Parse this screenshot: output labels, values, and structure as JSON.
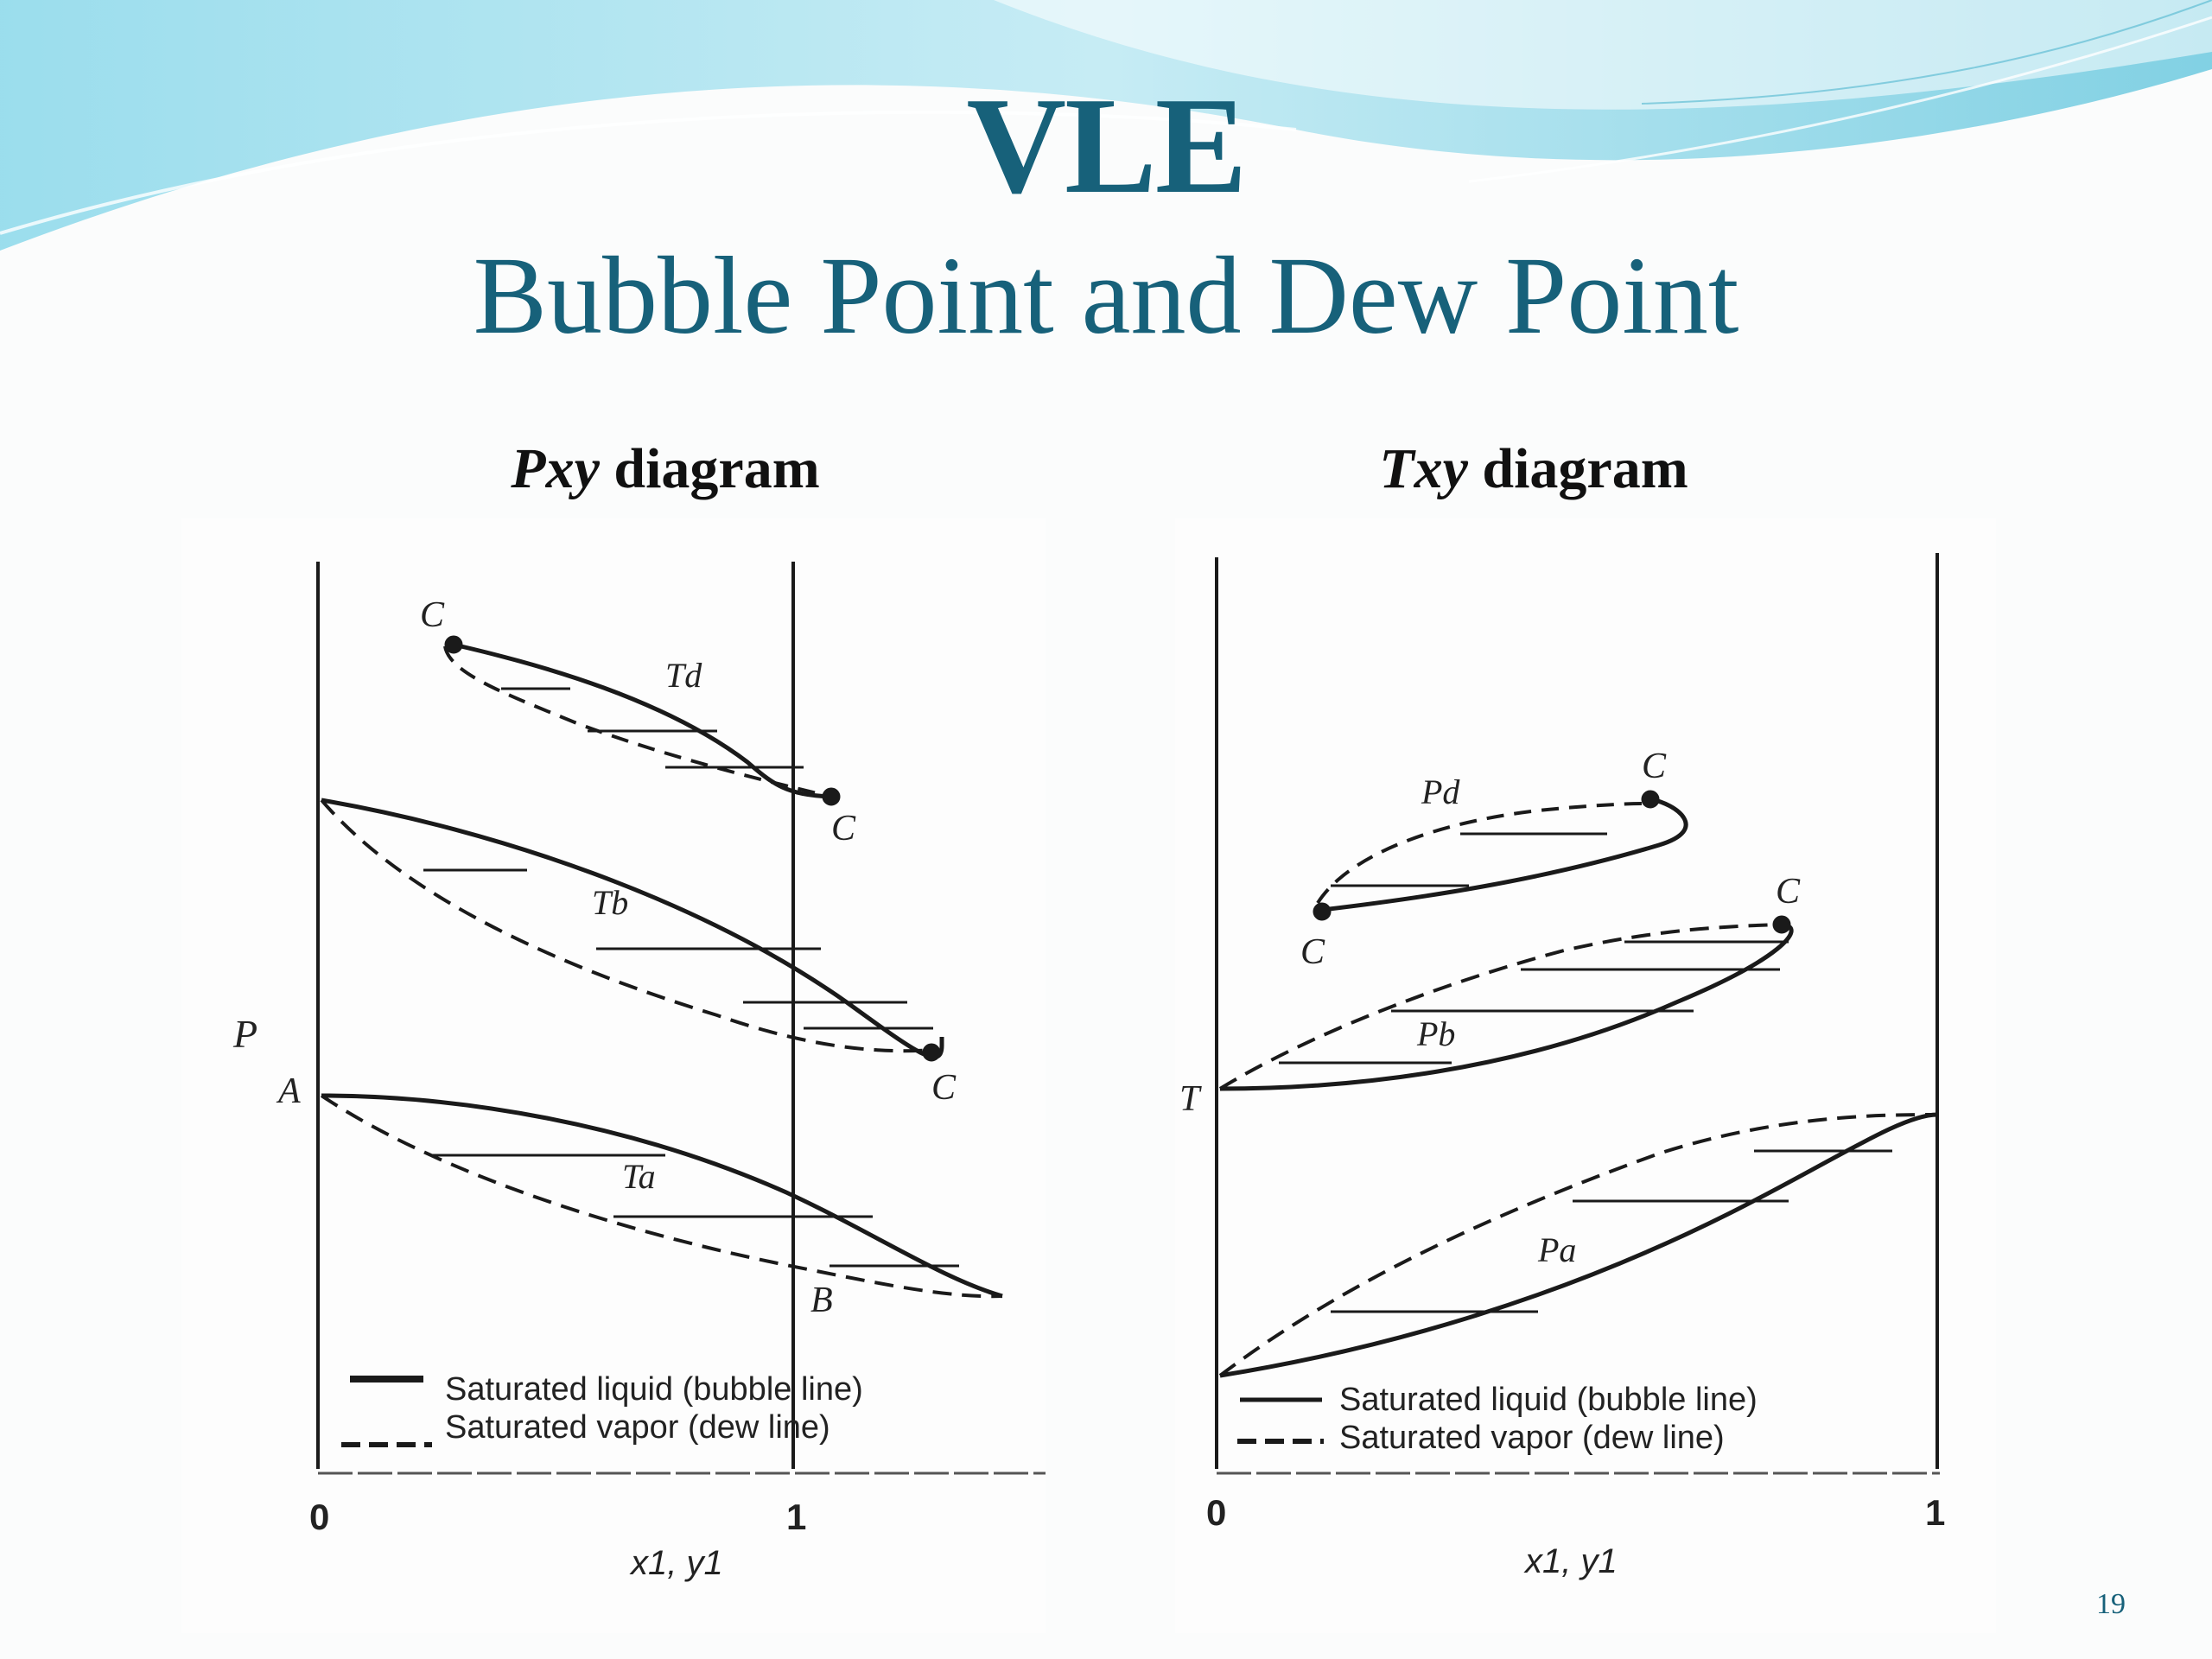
{
  "slide": {
    "title": "VLE",
    "subtitle": "Bubble Point and Dew Point",
    "page_number": "19"
  },
  "pxy": {
    "heading_symbol": "Pxy",
    "heading_text": " diagram",
    "y_axis_label": "P",
    "x_tick_0": "0",
    "x_tick_1": "1",
    "x_axis_label": "x1, y1",
    "point_A": "A",
    "point_B": "B",
    "crit_label": "C",
    "curve_low": "Ta",
    "curve_mid": "Tb",
    "curve_high": "Td",
    "legend_solid": "Saturated liquid (bubble line)",
    "legend_dashed": "Saturated vapor (dew line)"
  },
  "txy": {
    "heading_symbol": "Txy",
    "heading_text": " diagram",
    "y_axis_label": "T",
    "x_tick_0": "0",
    "x_tick_1": "1",
    "x_axis_label": "x1, y1",
    "crit_label": "C",
    "curve_low": "Pa",
    "curve_mid": "Pb",
    "curve_high": "Pd",
    "legend_solid": "Saturated liquid (bubble line)",
    "legend_dashed": "Saturated vapor (dew line)"
  },
  "colors": {
    "title": "#17617a",
    "wave": "#7fd0e2",
    "ink": "#1a1a1a"
  }
}
